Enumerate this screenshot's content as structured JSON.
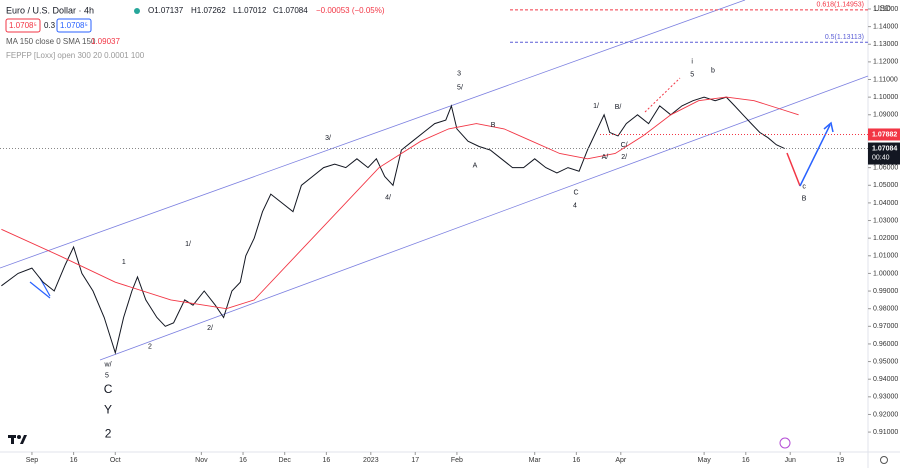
{
  "chart_data": {
    "type": "line",
    "title": "Euro / U.S. Dollar · 4h",
    "ohlc": [
      "O1.07137",
      "H1.07262",
      "L1.07012",
      "C1.07084",
      "−0.00053 (−0.05%)"
    ],
    "quotes": [
      "1.0708⁵",
      "0.3",
      "1.0708⁵"
    ],
    "indicators": [
      "MA 150 close 0 SMA 150",
      "1.09037",
      "FEPFP [Loxx] open 300 20 0.0001 100"
    ],
    "currency": "USD",
    "countdown": "00:40",
    "xlim": [
      -11.5,
      301
    ],
    "ylim": [
      0.8987,
      1.1551
    ],
    "xticks": [
      {
        "value": 0,
        "label": "Sep"
      },
      {
        "value": 15,
        "label": "16"
      },
      {
        "value": 30,
        "label": "Oct"
      },
      {
        "value": 61,
        "label": "Nov"
      },
      {
        "value": 76,
        "label": "16"
      },
      {
        "value": 91,
        "label": "Dec"
      },
      {
        "value": 106,
        "label": "16"
      },
      {
        "value": 122,
        "label": "2023"
      },
      {
        "value": 138,
        "label": "17"
      },
      {
        "value": 153,
        "label": "Feb"
      },
      {
        "value": 181,
        "label": "Mar"
      },
      {
        "value": 196,
        "label": "16"
      },
      {
        "value": 212,
        "label": "Apr"
      },
      {
        "value": 242,
        "label": "May"
      },
      {
        "value": 257,
        "label": "16"
      },
      {
        "value": 273,
        "label": "Jun"
      },
      {
        "value": 291,
        "label": "19"
      }
    ],
    "yticks": [
      {
        "value": 0.91,
        "label": "0.91000"
      },
      {
        "value": 0.92,
        "label": "0.92000"
      },
      {
        "value": 0.93,
        "label": "0.93000"
      },
      {
        "value": 0.94,
        "label": "0.94000"
      },
      {
        "value": 0.95,
        "label": "0.95000"
      },
      {
        "value": 0.96,
        "label": "0.96000"
      },
      {
        "value": 0.97,
        "label": "0.97000"
      },
      {
        "value": 0.98,
        "label": "0.98000"
      },
      {
        "value": 0.99,
        "label": "0.99000"
      },
      {
        "value": 1.0,
        "label": "1.00000"
      },
      {
        "value": 1.01,
        "label": "1.01000"
      },
      {
        "value": 1.02,
        "label": "1.02000"
      },
      {
        "value": 1.03,
        "label": "1.03000"
      },
      {
        "value": 1.04,
        "label": "1.04000"
      },
      {
        "value": 1.05,
        "label": "1.05000"
      },
      {
        "value": 1.06,
        "label": "1.06000"
      },
      {
        "value": 1.09,
        "label": "1.09000"
      },
      {
        "value": 1.1,
        "label": "1.10000"
      },
      {
        "value": 1.11,
        "label": "1.11000"
      },
      {
        "value": 1.12,
        "label": "1.12000"
      },
      {
        "value": 1.13,
        "label": "1.13000"
      },
      {
        "value": 1.14,
        "label": "1.14000"
      },
      {
        "value": 1.15,
        "label": "1.15000"
      }
    ],
    "series": [
      {
        "color": "#131722",
        "x": [
          -11,
          -5,
          0,
          4,
          8,
          12,
          15,
          18,
          22,
          26,
          29,
          30,
          33,
          36,
          38,
          41,
          45,
          48,
          51,
          55,
          58,
          62,
          66,
          69,
          72,
          75,
          77,
          80,
          83,
          86,
          90,
          94,
          97,
          101,
          105,
          109,
          113,
          117,
          121,
          124,
          127,
          130,
          133,
          137,
          141,
          145,
          149,
          151,
          153,
          157,
          161,
          165,
          169,
          173,
          177,
          181,
          185,
          189,
          193,
          197,
          200,
          203,
          206,
          208,
          211,
          214,
          218,
          222,
          226,
          230,
          234,
          238,
          242,
          246,
          250,
          253,
          256,
          259,
          262,
          265,
          268,
          271
        ],
        "values": [
          0.993,
          1.0,
          1.003,
          0.995,
          0.99,
          1.005,
          1.015,
          1.0,
          0.99,
          0.975,
          0.96,
          0.955,
          0.975,
          0.99,
          0.998,
          0.985,
          0.975,
          0.97,
          0.972,
          0.985,
          0.982,
          0.99,
          0.982,
          0.975,
          0.99,
          0.995,
          1.01,
          1.02,
          1.035,
          1.045,
          1.04,
          1.035,
          1.05,
          1.055,
          1.06,
          1.062,
          1.06,
          1.065,
          1.06,
          1.065,
          1.055,
          1.05,
          1.07,
          1.075,
          1.08,
          1.085,
          1.087,
          1.095,
          1.082,
          1.075,
          1.072,
          1.07,
          1.065,
          1.06,
          1.06,
          1.065,
          1.06,
          1.057,
          1.06,
          1.058,
          1.07,
          1.08,
          1.09,
          1.08,
          1.078,
          1.085,
          1.09,
          1.085,
          1.095,
          1.09,
          1.095,
          1.098,
          1.1,
          1.098,
          1.1,
          1.095,
          1.09,
          1.085,
          1.08,
          1.077,
          1.073,
          1.0708
        ]
      },
      {
        "color": "#f23645",
        "x": [
          -11,
          10,
          30,
          50,
          70,
          80,
          95,
          110,
          125,
          140,
          150,
          160,
          170,
          180,
          190,
          200,
          210,
          220,
          230,
          240,
          250,
          260,
          270,
          276
        ],
        "values": [
          1.025,
          1.01,
          0.995,
          0.985,
          0.98,
          0.985,
          1.01,
          1.035,
          1.06,
          1.075,
          1.082,
          1.085,
          1.082,
          1.075,
          1.068,
          1.065,
          1.068,
          1.078,
          1.09,
          1.098,
          1.1,
          1.098,
          1.093,
          1.09
        ]
      }
    ],
    "levels": [
      {
        "label": "0.618(1.14953)",
        "value": 1.14953,
        "color": "#f23645"
      },
      {
        "label": "0.5(1.13113)",
        "value": 1.13113,
        "color": "#5b5fd6"
      }
    ],
    "price_tags": [
      {
        "label": "1.07882",
        "value": 1.07882,
        "color": "#f23645"
      },
      {
        "label": "1.07084",
        "value": 1.07084,
        "color": "#131722"
      }
    ],
    "annotations": [
      {
        "text": "w/",
        "x": 27.4,
        "y": 0.9483
      },
      {
        "text": "5",
        "x": 27.0,
        "y": 0.9421
      },
      {
        "text": "C",
        "x": 27.4,
        "y": 0.934,
        "big": true
      },
      {
        "text": "Y",
        "x": 27.4,
        "y": 0.9222,
        "big": true
      },
      {
        "text": "2",
        "x": 27.4,
        "y": 0.9087,
        "big": true
      },
      {
        "text": "1",
        "x": 33.1,
        "y": 1.0063
      },
      {
        "text": "2",
        "x": 42.5,
        "y": 0.9585
      },
      {
        "text": "1/",
        "x": 56.2,
        "y": 1.0165
      },
      {
        "text": "2/",
        "x": 64.1,
        "y": 0.969
      },
      {
        "text": "3/",
        "x": 106.6,
        "y": 1.0768
      },
      {
        "text": "4/",
        "x": 128.2,
        "y": 1.043
      },
      {
        "text": "3",
        "x": 153.8,
        "y": 1.1134
      },
      {
        "text": "5/",
        "x": 154.1,
        "y": 1.1055
      },
      {
        "text": "B",
        "x": 166.0,
        "y": 1.0841
      },
      {
        "text": "A",
        "x": 159.5,
        "y": 1.061
      },
      {
        "text": "C",
        "x": 195.9,
        "y": 1.0458
      },
      {
        "text": "4",
        "x": 195.5,
        "y": 1.0385
      },
      {
        "text": "1/",
        "x": 203.1,
        "y": 1.0948
      },
      {
        "text": "B/",
        "x": 211.0,
        "y": 1.0942
      },
      {
        "text": "A/",
        "x": 206.3,
        "y": 1.066
      },
      {
        "text": "C/",
        "x": 213.2,
        "y": 1.0728
      },
      {
        "text": "2/",
        "x": 213.2,
        "y": 1.066
      },
      {
        "text": "i",
        "x": 237.7,
        "y": 1.1201
      },
      {
        "text": "5",
        "x": 237.7,
        "y": 1.1128
      },
      {
        "text": "b",
        "x": 245.2,
        "y": 1.1151
      },
      {
        "text": "c",
        "x": 278.0,
        "y": 1.0492
      },
      {
        "text": "B",
        "x": 278.0,
        "y": 1.0424
      }
    ]
  }
}
